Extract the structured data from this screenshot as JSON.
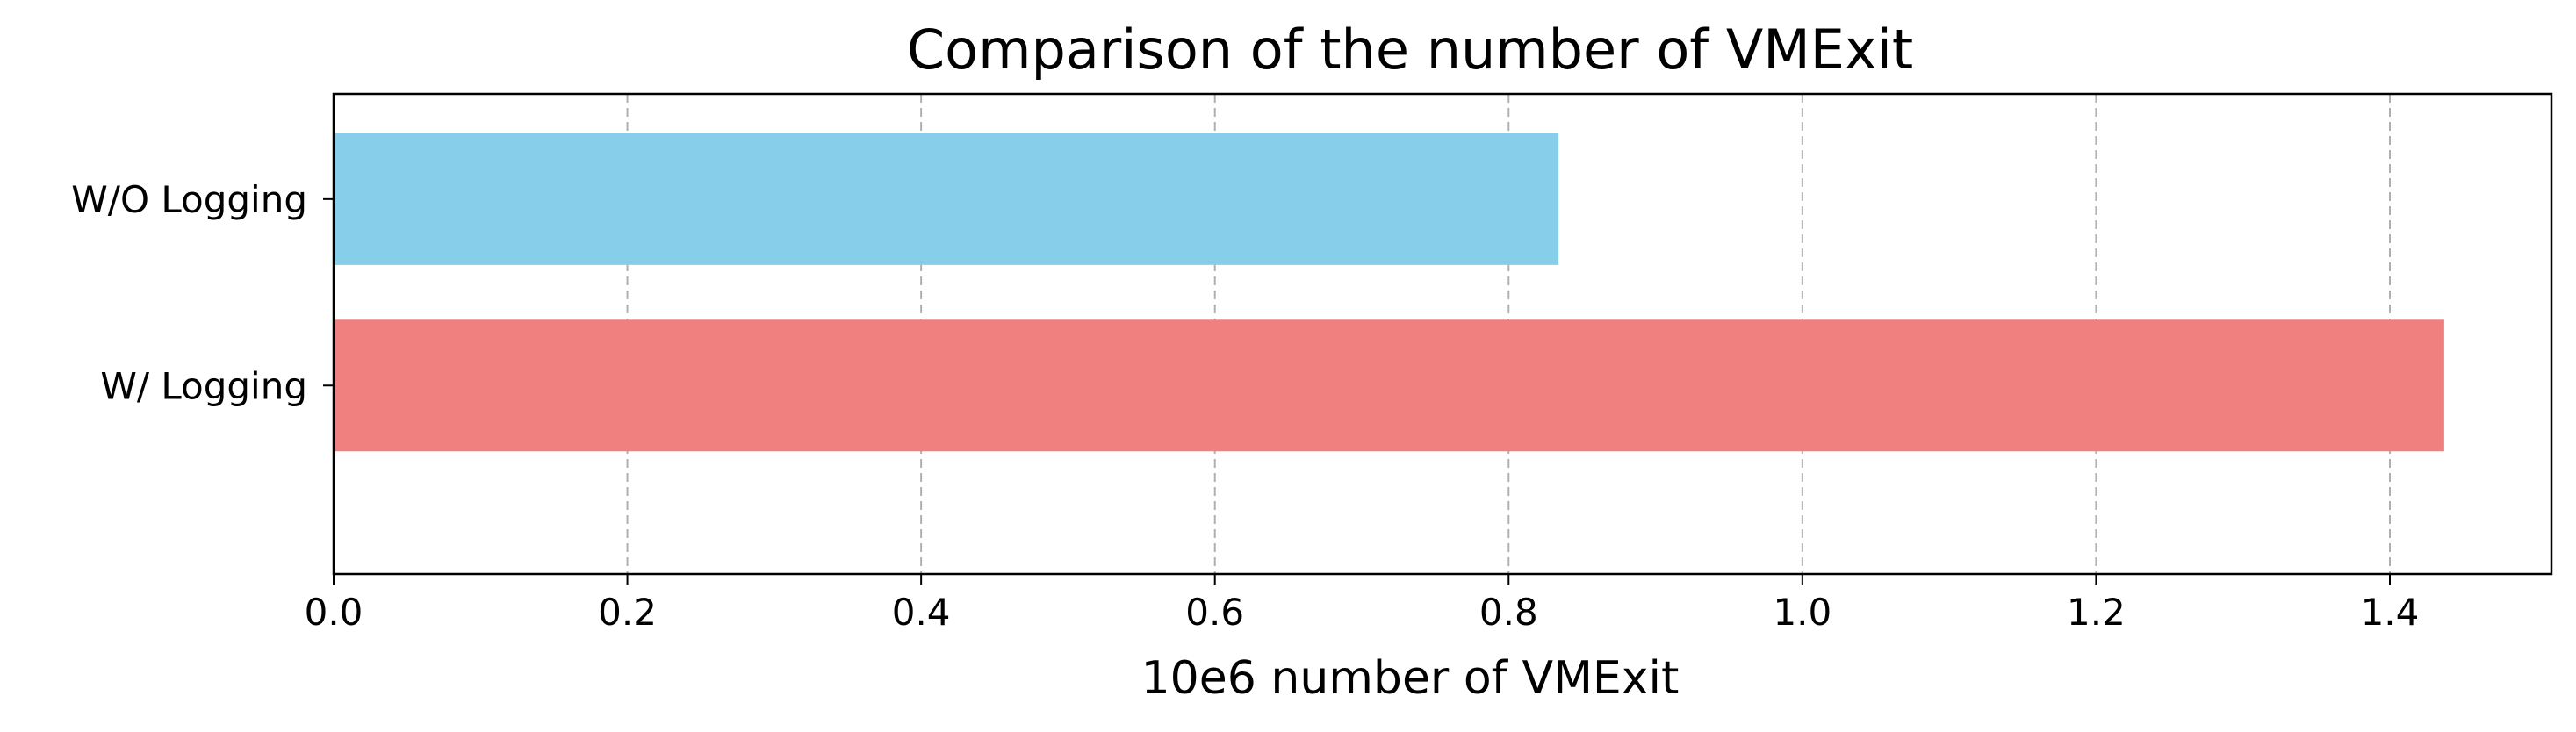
{
  "chart_data": {
    "type": "bar",
    "orientation": "horizontal",
    "title": "Comparison of the number of VMExit",
    "xlabel": "10e6 number of VMExit",
    "ylabel": "",
    "categories": [
      "W/O Logging",
      "W/ Logging"
    ],
    "values": [
      0.834,
      1.437
    ],
    "colors": [
      "#87CEEB",
      "#F08080"
    ],
    "xlim": [
      0,
      1.51
    ],
    "xticks": [
      0.0,
      0.2,
      0.4,
      0.6,
      0.8,
      1.0,
      1.2,
      1.4
    ],
    "xtick_labels": [
      "0.0",
      "0.2",
      "0.4",
      "0.6",
      "0.8",
      "1.0",
      "1.2",
      "1.4"
    ],
    "grid": "x-axis dashed",
    "legend": "none"
  }
}
